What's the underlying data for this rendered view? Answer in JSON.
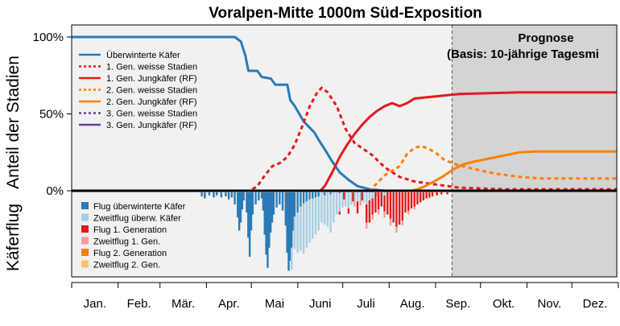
{
  "chart_data": {
    "type": "line",
    "title": "Voralpen-Mitte 1000m Süd-Exposition",
    "ylabel_top": "Anteil der Stadien",
    "ylabel_bottom": "Käferflug",
    "yticks": [
      "100%",
      "50%",
      "0%"
    ],
    "ylim": [
      0,
      100
    ],
    "x_unit": "day of year",
    "months": [
      "Jan.",
      "Feb.",
      "Mär.",
      "Apr.",
      "Mai",
      "Juni",
      "Juli",
      "Aug.",
      "Sep.",
      "Okt.",
      "Nov.",
      "Dez."
    ],
    "forecast_start_day": 255,
    "forecast_label_1": "Prognose",
    "forecast_label_2": "(Basis: 10-jährige Tagesmi",
    "line_series": [
      {
        "name": "Überwinterte Käfer",
        "color": "#2a7ab8",
        "dash": false,
        "points": [
          [
            1,
            100
          ],
          [
            110,
            100
          ],
          [
            114,
            97
          ],
          [
            117,
            88
          ],
          [
            119,
            78
          ],
          [
            125,
            78
          ],
          [
            128,
            74
          ],
          [
            134,
            73
          ],
          [
            137,
            69
          ],
          [
            145,
            69
          ],
          [
            147,
            59
          ],
          [
            150,
            55
          ],
          [
            153,
            50
          ],
          [
            156,
            45
          ],
          [
            160,
            41
          ],
          [
            163,
            38
          ],
          [
            166,
            33
          ],
          [
            170,
            27
          ],
          [
            175,
            19
          ],
          [
            180,
            12
          ],
          [
            186,
            7
          ],
          [
            192,
            3
          ],
          [
            200,
            1
          ],
          [
            210,
            0
          ],
          [
            365,
            0
          ]
        ]
      },
      {
        "name": "1. Gen. weisse Stadien",
        "color": "#e31a1c",
        "dash": true,
        "points": [
          [
            1,
            0
          ],
          [
            120,
            0
          ],
          [
            125,
            3
          ],
          [
            130,
            10
          ],
          [
            135,
            16
          ],
          [
            140,
            18
          ],
          [
            145,
            22
          ],
          [
            150,
            30
          ],
          [
            155,
            42
          ],
          [
            160,
            55
          ],
          [
            165,
            64
          ],
          [
            168,
            67
          ],
          [
            172,
            64
          ],
          [
            178,
            55
          ],
          [
            184,
            40
          ],
          [
            190,
            31
          ],
          [
            196,
            27
          ],
          [
            202,
            23
          ],
          [
            207,
            18
          ],
          [
            212,
            14
          ],
          [
            220,
            9
          ],
          [
            230,
            6
          ],
          [
            245,
            4
          ],
          [
            260,
            2
          ],
          [
            290,
            1
          ],
          [
            365,
            1
          ]
        ]
      },
      {
        "name": "1. Gen. Jungkäfer (RF)",
        "color": "#e31a1c",
        "dash": false,
        "points": [
          [
            1,
            0
          ],
          [
            167,
            0
          ],
          [
            170,
            3
          ],
          [
            175,
            12
          ],
          [
            180,
            22
          ],
          [
            185,
            30
          ],
          [
            190,
            37
          ],
          [
            195,
            43
          ],
          [
            200,
            48
          ],
          [
            205,
            52
          ],
          [
            210,
            55
          ],
          [
            215,
            57
          ],
          [
            220,
            55
          ],
          [
            225,
            57
          ],
          [
            230,
            60
          ],
          [
            240,
            61
          ],
          [
            250,
            62
          ],
          [
            260,
            63
          ],
          [
            280,
            63.5
          ],
          [
            300,
            64
          ],
          [
            365,
            64
          ]
        ]
      },
      {
        "name": "2. Gen. weisse Stadien",
        "color": "#ff7f00",
        "dash": true,
        "points": [
          [
            1,
            0
          ],
          [
            200,
            0
          ],
          [
            205,
            5
          ],
          [
            210,
            10
          ],
          [
            215,
            13
          ],
          [
            220,
            16
          ],
          [
            225,
            24
          ],
          [
            230,
            28
          ],
          [
            235,
            29
          ],
          [
            240,
            27
          ],
          [
            245,
            24
          ],
          [
            250,
            20
          ],
          [
            258,
            17
          ],
          [
            266,
            15
          ],
          [
            275,
            13
          ],
          [
            285,
            11
          ],
          [
            300,
            9
          ],
          [
            315,
            8
          ],
          [
            330,
            8
          ],
          [
            365,
            8
          ]
        ]
      },
      {
        "name": "2. Gen. Jungkäfer (RF)",
        "color": "#ff7f00",
        "dash": false,
        "points": [
          [
            1,
            0
          ],
          [
            228,
            0
          ],
          [
            232,
            1
          ],
          [
            237,
            3
          ],
          [
            243,
            6
          ],
          [
            250,
            10
          ],
          [
            256,
            14
          ],
          [
            262,
            17
          ],
          [
            270,
            19
          ],
          [
            280,
            21
          ],
          [
            290,
            23
          ],
          [
            300,
            25
          ],
          [
            310,
            25.5
          ],
          [
            330,
            25.5
          ],
          [
            365,
            25.5
          ]
        ]
      },
      {
        "name": "3. Gen. weisse Stadien",
        "color": "#6a3d9a",
        "dash": true,
        "points": [
          [
            1,
            0
          ],
          [
            365,
            0
          ]
        ]
      },
      {
        "name": "3. Gen. Jungkäfer (RF)",
        "color": "#6a3d9a",
        "dash": false,
        "points": [
          [
            1,
            0
          ],
          [
            365,
            0
          ]
        ]
      }
    ],
    "bar_series": [
      {
        "name": "Flug überwinterte Käfer",
        "color": "#2a7ab8",
        "points": [
          [
            88,
            4
          ],
          [
            90,
            6
          ],
          [
            93,
            3
          ],
          [
            96,
            5
          ],
          [
            98,
            3
          ],
          [
            101,
            5
          ],
          [
            104,
            4
          ],
          [
            106,
            7
          ],
          [
            108,
            5
          ],
          [
            110,
            12
          ],
          [
            112,
            25
          ],
          [
            113,
            38
          ],
          [
            114,
            30
          ],
          [
            115,
            17
          ],
          [
            116,
            8
          ],
          [
            118,
            20
          ],
          [
            119,
            45
          ],
          [
            120,
            64
          ],
          [
            121,
            38
          ],
          [
            122,
            22
          ],
          [
            124,
            12
          ],
          [
            126,
            8
          ],
          [
            128,
            6
          ],
          [
            129,
            18
          ],
          [
            130,
            42
          ],
          [
            131,
            62
          ],
          [
            132,
            75
          ],
          [
            133,
            55
          ],
          [
            134,
            40
          ],
          [
            135,
            30
          ],
          [
            136,
            22
          ],
          [
            138,
            15
          ],
          [
            140,
            12
          ],
          [
            142,
            18
          ],
          [
            144,
            33
          ],
          [
            145,
            60
          ],
          [
            146,
            78
          ],
          [
            147,
            68
          ],
          [
            148,
            55
          ],
          [
            149,
            38
          ],
          [
            150,
            24
          ],
          [
            152,
            20
          ],
          [
            154,
            14
          ],
          [
            156,
            11
          ],
          [
            158,
            9
          ],
          [
            160,
            7
          ],
          [
            162,
            6
          ],
          [
            164,
            5
          ],
          [
            166,
            4
          ],
          [
            170,
            3
          ],
          [
            174,
            2
          ],
          [
            180,
            1
          ]
        ]
      },
      {
        "name": "Zweitflug überw. Käfer",
        "color": "#a6cee3",
        "points": [
          [
            148,
            22
          ],
          [
            150,
            32
          ],
          [
            152,
            40
          ],
          [
            154,
            44
          ],
          [
            156,
            50
          ],
          [
            158,
            46
          ],
          [
            160,
            43
          ],
          [
            162,
            40
          ],
          [
            164,
            37
          ],
          [
            166,
            34
          ],
          [
            168,
            30
          ],
          [
            170,
            29
          ],
          [
            172,
            34
          ],
          [
            174,
            38
          ],
          [
            176,
            30
          ],
          [
            178,
            22
          ],
          [
            180,
            18
          ],
          [
            182,
            15
          ],
          [
            184,
            14
          ],
          [
            186,
            16
          ],
          [
            188,
            12
          ],
          [
            190,
            10
          ],
          [
            192,
            9
          ],
          [
            194,
            8
          ],
          [
            196,
            10
          ],
          [
            198,
            12
          ],
          [
            200,
            8
          ],
          [
            202,
            6
          ],
          [
            205,
            4
          ],
          [
            210,
            3
          ]
        ]
      },
      {
        "name": "Flug 1. Generation",
        "color": "#e31a1c",
        "points": [
          [
            180,
            3
          ],
          [
            183,
            7
          ],
          [
            186,
            5
          ],
          [
            189,
            9
          ],
          [
            192,
            12
          ],
          [
            195,
            8
          ],
          [
            198,
            18
          ],
          [
            200,
            22
          ],
          [
            202,
            16
          ],
          [
            204,
            20
          ],
          [
            206,
            17
          ],
          [
            208,
            14
          ],
          [
            210,
            16
          ],
          [
            212,
            22
          ],
          [
            214,
            26
          ],
          [
            216,
            30
          ],
          [
            218,
            34
          ],
          [
            220,
            32
          ],
          [
            222,
            28
          ],
          [
            224,
            20
          ],
          [
            226,
            18
          ],
          [
            228,
            16
          ],
          [
            230,
            14
          ],
          [
            232,
            12
          ],
          [
            234,
            10
          ],
          [
            236,
            8
          ],
          [
            238,
            6
          ],
          [
            240,
            5
          ],
          [
            242,
            4
          ],
          [
            245,
            3
          ],
          [
            248,
            2
          ],
          [
            252,
            2
          ]
        ]
      },
      {
        "name": "Zweitflug 1. Gen.",
        "color": "#fb9a99",
        "points": [
          [
            190,
            4
          ],
          [
            194,
            5
          ],
          [
            198,
            6
          ],
          [
            202,
            5
          ],
          [
            206,
            5
          ],
          [
            210,
            6
          ],
          [
            214,
            7
          ],
          [
            218,
            6
          ],
          [
            222,
            5
          ],
          [
            226,
            4
          ],
          [
            230,
            3
          ],
          [
            235,
            2
          ],
          [
            240,
            1
          ]
        ]
      },
      {
        "name": "Flug 2. Generation",
        "color": "#ff7f00",
        "points": []
      },
      {
        "name": "Zweitflug 2. Gen.",
        "color": "#fdbf6f",
        "points": []
      }
    ]
  }
}
